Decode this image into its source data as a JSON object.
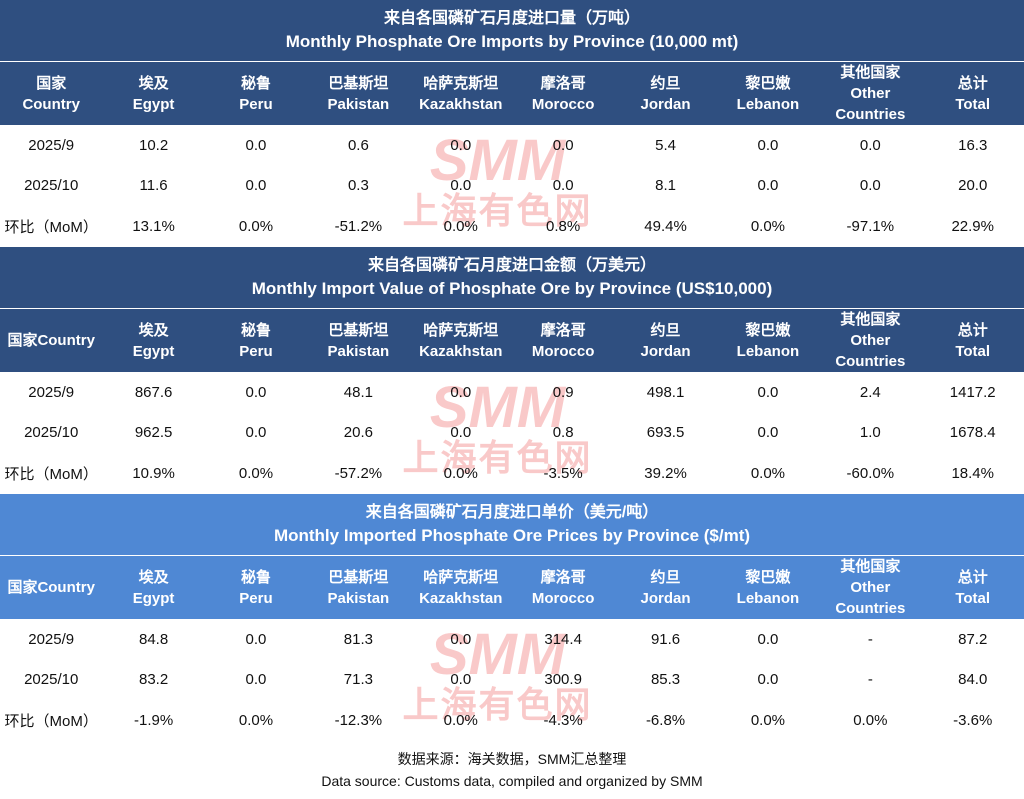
{
  "sections": [
    {
      "title_cn": "来自各国磷矿石月度进口量（万吨）",
      "title_en": "Monthly Phosphate Ore Imports by Province (10,000 mt)",
      "headers": [
        [
          "国家",
          "Country"
        ],
        [
          "埃及",
          "Egypt"
        ],
        [
          "秘鲁",
          "Peru"
        ],
        [
          "巴基斯坦",
          "Pakistan"
        ],
        [
          "哈萨克斯坦",
          "Kazakhstan"
        ],
        [
          "摩洛哥",
          "Morocco"
        ],
        [
          "约旦",
          "Jordan"
        ],
        [
          "黎巴嫩",
          "Lebanon"
        ],
        [
          "其他国家",
          "Other",
          "Countries"
        ],
        [
          "总计",
          "Total"
        ]
      ],
      "rows": [
        [
          "2025/9",
          "10.2",
          "0.0",
          "0.6",
          "0.0",
          "0.0",
          "5.4",
          "0.0",
          "0.0",
          "16.3"
        ],
        [
          "2025/10",
          "11.6",
          "0.0",
          "0.3",
          "0.0",
          "0.0",
          "8.1",
          "0.0",
          "0.0",
          "20.0"
        ],
        [
          "环比（MoM）",
          "13.1%",
          "0.0%",
          "-51.2%",
          "0.0%",
          "0.8%",
          "49.4%",
          "0.0%",
          "-97.1%",
          "22.9%"
        ]
      ]
    },
    {
      "title_cn": "来自各国磷矿石月度进口金额（万美元）",
      "title_en": "Monthly Import Value of Phosphate Ore by Province (US$10,000)",
      "headers": [
        [
          "国家Country"
        ],
        [
          "埃及",
          "Egypt"
        ],
        [
          "秘鲁",
          "Peru"
        ],
        [
          "巴基斯坦",
          "Pakistan"
        ],
        [
          "哈萨克斯坦",
          "Kazakhstan"
        ],
        [
          "摩洛哥",
          "Morocco"
        ],
        [
          "约旦",
          "Jordan"
        ],
        [
          "黎巴嫩",
          "Lebanon"
        ],
        [
          "其他国家",
          "Other",
          "Countries"
        ],
        [
          "总计",
          "Total"
        ]
      ],
      "rows": [
        [
          "2025/9",
          "867.6",
          "0.0",
          "48.1",
          "0.0",
          "0.9",
          "498.1",
          "0.0",
          "2.4",
          "1417.2"
        ],
        [
          "2025/10",
          "962.5",
          "0.0",
          "20.6",
          "0.0",
          "0.8",
          "693.5",
          "0.0",
          "1.0",
          "1678.4"
        ],
        [
          "环比（MoM）",
          "10.9%",
          "0.0%",
          "-57.2%",
          "0.0%",
          "-3.5%",
          "39.2%",
          "0.0%",
          "-60.0%",
          "18.4%"
        ]
      ]
    },
    {
      "title_cn": "来自各国磷矿石月度进口单价（美元/吨）",
      "title_en": "Monthly Imported Phosphate Ore Prices by Province ($/mt)",
      "headers": [
        [
          "国家Country"
        ],
        [
          "埃及",
          "Egypt"
        ],
        [
          "秘鲁",
          "Peru"
        ],
        [
          "巴基斯坦",
          "Pakistan"
        ],
        [
          "哈萨克斯坦",
          "Kazakhstan"
        ],
        [
          "摩洛哥",
          "Morocco"
        ],
        [
          "约旦",
          "Jordan"
        ],
        [
          "黎巴嫩",
          "Lebanon"
        ],
        [
          "其他国家",
          "Other",
          "Countries"
        ],
        [
          "总计",
          "Total"
        ]
      ],
      "rows": [
        [
          "2025/9",
          "84.8",
          "0.0",
          "81.3",
          "0.0",
          "314.4",
          "91.6",
          "0.0",
          "-",
          "87.2"
        ],
        [
          "2025/10",
          "83.2",
          "0.0",
          "71.3",
          "0.0",
          "300.9",
          "85.3",
          "0.0",
          "-",
          "84.0"
        ],
        [
          "环比（MoM）",
          "-1.9%",
          "0.0%",
          "-12.3%",
          "0.0%",
          "-4.3%",
          "-6.8%",
          "0.0%",
          "0.0%",
          "-3.6%"
        ]
      ]
    }
  ],
  "watermark": {
    "logo": "SMM",
    "text": "上海有色网"
  },
  "footer": {
    "source_cn": "数据来源：海关数据，SMM汇总整理",
    "source_en": "Data source: Customs data, compiled and organized by SMM"
  }
}
